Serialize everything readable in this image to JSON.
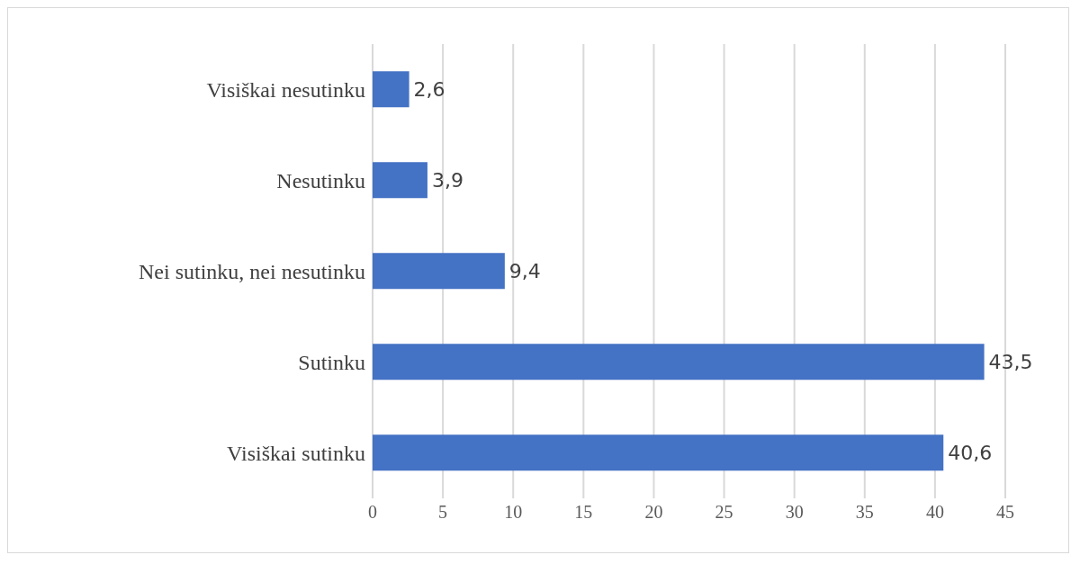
{
  "chart_data": {
    "type": "bar",
    "orientation": "horizontal",
    "categories": [
      "Visiškai nesutinku",
      "Nesutinku",
      "Nei sutinku, nei nesutinku",
      "Sutinku",
      "Visiškai sutinku"
    ],
    "values": [
      2.6,
      3.9,
      9.4,
      43.5,
      40.6
    ],
    "value_labels": [
      "2,6",
      "3,9",
      "9,4",
      "43,5",
      "40,6"
    ],
    "color": "#4472c4",
    "xlim": [
      0,
      45
    ],
    "xticks": [
      0,
      5,
      10,
      15,
      20,
      25,
      30,
      35,
      40,
      45
    ],
    "grid": "x"
  }
}
